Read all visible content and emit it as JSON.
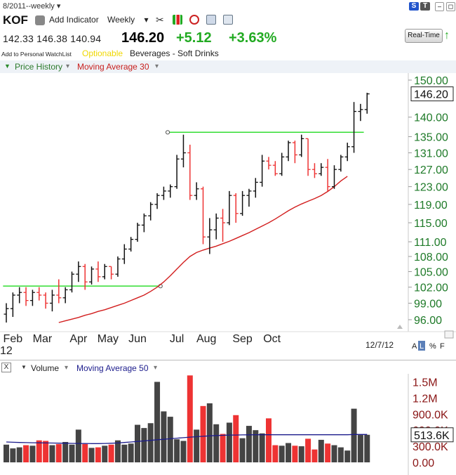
{
  "header": {
    "period": "8/2011--weekly",
    "symbol": "KOF",
    "add_indicator": "Add Indicator",
    "timeframe": "Weekly",
    "open": "142.33",
    "high": "146.38",
    "low": "140.94",
    "last": "146.20",
    "change": "+5.12",
    "change_pct": "+3.63%",
    "watchlist": "Add to Personal WatchList",
    "optionable": "Optionable",
    "industry": "Beverages - Soft Drinks",
    "realtime": "Real-Time",
    "s_badge": "S",
    "t_badge": "T"
  },
  "price_legend": {
    "main": "Price History",
    "indicator": "Moving Average 30"
  },
  "volume_legend": {
    "main": "Volume",
    "indicator": "Moving Average 50",
    "close_x": "X"
  },
  "date_stamp": "12/7/12",
  "year_stub": "12",
  "axis_modes": [
    "A",
    "L",
    "%",
    "F"
  ],
  "colors": {
    "up": "#111111",
    "down": "#ee3333",
    "ma30": "#d21e1e",
    "ma50": "#1c1c8c",
    "trend": "#33dd33",
    "axis_text": "#1e7a28"
  },
  "chart_data": [
    {
      "type": "ohlc",
      "title": "",
      "y_ticks": [
        150.0,
        140.0,
        135.0,
        131.0,
        127.0,
        123.0,
        119.0,
        115.0,
        111.0,
        108.0,
        105.0,
        102.0,
        99.0,
        96.0
      ],
      "y_tick_labels": [
        "150.00",
        "140.00",
        "135.00",
        "131.00",
        "127.00",
        "123.00",
        "119.00",
        "115.00",
        "111.00",
        "108.00",
        "105.00",
        "102.00",
        "99.00",
        "96.00"
      ],
      "ylim": [
        94,
        153
      ],
      "y_scale": "log",
      "x_labels": [
        {
          "label": "Feb",
          "i": 1
        },
        {
          "label": "Mar",
          "i": 5.5
        },
        {
          "label": "Apr",
          "i": 11
        },
        {
          "label": "May",
          "i": 15.5
        },
        {
          "label": "Jun",
          "i": 20
        },
        {
          "label": "Jul",
          "i": 26
        },
        {
          "label": "Aug",
          "i": 30.5
        },
        {
          "label": "Sep",
          "i": 36
        },
        {
          "label": "Oct",
          "i": 40.5
        }
      ],
      "last_price_label": "146.20",
      "series": [
        {
          "name": "Price History",
          "type": "ohlc",
          "bars": [
            {
              "o": 97.0,
              "h": 99.0,
              "l": 95.5,
              "c": 98.0
            },
            {
              "o": 98.0,
              "h": 101.0,
              "l": 96.5,
              "c": 100.5
            },
            {
              "o": 100.5,
              "h": 102.0,
              "l": 99.0,
              "c": 101.0
            },
            {
              "o": 101.0,
              "h": 102.0,
              "l": 98.5,
              "c": 99.5
            },
            {
              "o": 99.5,
              "h": 101.5,
              "l": 98.5,
              "c": 101.0
            },
            {
              "o": 101.0,
              "h": 102.0,
              "l": 99.5,
              "c": 100.5
            },
            {
              "o": 100.5,
              "h": 101.0,
              "l": 98.0,
              "c": 99.0
            },
            {
              "o": 99.0,
              "h": 101.5,
              "l": 97.5,
              "c": 100.5
            },
            {
              "o": 100.5,
              "h": 103.5,
              "l": 99.0,
              "c": 100.0
            },
            {
              "o": 100.0,
              "h": 102.0,
              "l": 99.0,
              "c": 101.5
            },
            {
              "o": 101.5,
              "h": 105.0,
              "l": 101.0,
              "c": 104.5
            },
            {
              "o": 104.5,
              "h": 107.0,
              "l": 103.0,
              "c": 106.0
            },
            {
              "o": 106.0,
              "h": 106.5,
              "l": 101.5,
              "c": 103.0
            },
            {
              "o": 103.0,
              "h": 106.0,
              "l": 102.5,
              "c": 105.5
            },
            {
              "o": 105.5,
              "h": 107.0,
              "l": 103.0,
              "c": 104.0
            },
            {
              "o": 104.0,
              "h": 106.5,
              "l": 103.5,
              "c": 106.0
            },
            {
              "o": 106.0,
              "h": 106.0,
              "l": 103.5,
              "c": 104.5
            },
            {
              "o": 104.5,
              "h": 108.0,
              "l": 104.0,
              "c": 107.5
            },
            {
              "o": 107.5,
              "h": 110.5,
              "l": 106.5,
              "c": 109.5
            },
            {
              "o": 109.5,
              "h": 112.0,
              "l": 109.0,
              "c": 111.5
            },
            {
              "o": 111.5,
              "h": 115.0,
              "l": 111.0,
              "c": 114.5
            },
            {
              "o": 114.5,
              "h": 117.0,
              "l": 113.0,
              "c": 116.5
            },
            {
              "o": 116.5,
              "h": 119.5,
              "l": 115.5,
              "c": 119.0
            },
            {
              "o": 119.0,
              "h": 121.5,
              "l": 118.0,
              "c": 121.0
            },
            {
              "o": 121.0,
              "h": 123.0,
              "l": 120.0,
              "c": 122.0
            },
            {
              "o": 122.0,
              "h": 123.5,
              "l": 120.5,
              "c": 123.0
            },
            {
              "o": 123.0,
              "h": 130.5,
              "l": 122.5,
              "c": 129.5
            },
            {
              "o": 129.5,
              "h": 135.5,
              "l": 127.5,
              "c": 131.0
            },
            {
              "o": 131.0,
              "h": 133.0,
              "l": 120.0,
              "c": 121.0
            },
            {
              "o": 121.0,
              "h": 124.0,
              "l": 120.0,
              "c": 122.5
            },
            {
              "o": 122.5,
              "h": 123.0,
              "l": 110.5,
              "c": 112.0
            },
            {
              "o": 112.0,
              "h": 116.0,
              "l": 108.5,
              "c": 113.5
            },
            {
              "o": 113.5,
              "h": 117.0,
              "l": 111.5,
              "c": 116.0
            },
            {
              "o": 116.0,
              "h": 118.0,
              "l": 111.0,
              "c": 115.0
            },
            {
              "o": 115.0,
              "h": 122.0,
              "l": 114.5,
              "c": 121.0
            },
            {
              "o": 121.0,
              "h": 121.5,
              "l": 115.0,
              "c": 117.0
            },
            {
              "o": 117.0,
              "h": 122.0,
              "l": 116.5,
              "c": 121.0
            },
            {
              "o": 121.0,
              "h": 122.5,
              "l": 118.5,
              "c": 122.0
            },
            {
              "o": 122.0,
              "h": 125.0,
              "l": 120.5,
              "c": 124.0
            },
            {
              "o": 124.0,
              "h": 130.5,
              "l": 123.0,
              "c": 129.0
            },
            {
              "o": 129.0,
              "h": 130.0,
              "l": 127.0,
              "c": 128.0
            },
            {
              "o": 128.0,
              "h": 129.0,
              "l": 125.5,
              "c": 126.0
            },
            {
              "o": 126.0,
              "h": 131.0,
              "l": 125.5,
              "c": 130.0
            },
            {
              "o": 130.0,
              "h": 134.0,
              "l": 129.0,
              "c": 133.5
            },
            {
              "o": 133.5,
              "h": 134.0,
              "l": 128.5,
              "c": 130.5
            },
            {
              "o": 130.5,
              "h": 135.5,
              "l": 130.0,
              "c": 134.5
            },
            {
              "o": 134.5,
              "h": 134.5,
              "l": 125.5,
              "c": 127.0
            },
            {
              "o": 127.0,
              "h": 128.5,
              "l": 125.0,
              "c": 126.0
            },
            {
              "o": 126.0,
              "h": 128.5,
              "l": 125.5,
              "c": 127.5
            },
            {
              "o": 127.5,
              "h": 129.5,
              "l": 122.0,
              "c": 123.0
            },
            {
              "o": 123.0,
              "h": 128.0,
              "l": 122.5,
              "c": 127.0
            },
            {
              "o": 127.0,
              "h": 130.5,
              "l": 126.5,
              "c": 130.0
            },
            {
              "o": 130.0,
              "h": 133.5,
              "l": 129.0,
              "c": 132.5
            },
            {
              "o": 132.5,
              "h": 144.0,
              "l": 131.0,
              "c": 141.5
            },
            {
              "o": 141.5,
              "h": 143.5,
              "l": 139.0,
              "c": 142.0
            },
            {
              "o": 142.0,
              "h": 146.5,
              "l": 140.9,
              "c": 146.2
            }
          ]
        },
        {
          "name": "Moving Average 30",
          "type": "line",
          "x_start": 8,
          "values": [
            95.5,
            95.8,
            96.1,
            96.4,
            96.8,
            97.1,
            97.5,
            97.8,
            98.2,
            98.6,
            99.0,
            99.5,
            100.0,
            100.5,
            101.2,
            102.0,
            103.0,
            104.2,
            105.5,
            106.8,
            108.0,
            108.8,
            109.3,
            109.7,
            110.1,
            110.6,
            111.1,
            111.7,
            112.3,
            112.9,
            113.6,
            114.3,
            115.0,
            115.8,
            116.7,
            117.6,
            118.4,
            119.1,
            119.7,
            120.3,
            121.0,
            121.9,
            123.0,
            124.3,
            125.4
          ]
        },
        {
          "name": "Trendline",
          "type": "segment",
          "points": [
            {
              "x": -0.5,
              "y": 102.2
            },
            {
              "x": 23.5,
              "y": 102.2
            }
          ]
        },
        {
          "name": "Trendline",
          "type": "segment",
          "points": [
            {
              "x": 24.6,
              "y": 136.1
            },
            {
              "x": 54.5,
              "y": 136.1
            }
          ]
        }
      ]
    },
    {
      "type": "bar",
      "title": "",
      "y_ticks": [
        1500000,
        1200000,
        900000,
        600000,
        300000,
        0
      ],
      "y_tick_labels": [
        "1.5M",
        "1.2M",
        "900.0K",
        "600.0K",
        "300.0K",
        "0.00"
      ],
      "ylim": [
        0,
        1650000
      ],
      "last_value_label": "513.6K",
      "series": [
        {
          "name": "Volume",
          "values": [
            330000,
            260000,
            280000,
            320000,
            310000,
            410000,
            400000,
            320000,
            340000,
            380000,
            330000,
            610000,
            340000,
            270000,
            280000,
            310000,
            330000,
            410000,
            330000,
            350000,
            700000,
            640000,
            730000,
            1500000,
            950000,
            850000,
            430000,
            400000,
            1620000,
            610000,
            1050000,
            1100000,
            710000,
            530000,
            740000,
            880000,
            450000,
            680000,
            600000,
            540000,
            820000,
            320000,
            310000,
            360000,
            310000,
            300000,
            440000,
            240000,
            420000,
            350000,
            320000,
            280000,
            220000,
            1000000,
            510000,
            513600
          ],
          "colors": "mixed"
        },
        {
          "name": "Moving Average 50",
          "type": "line",
          "values": [
            380000,
            375000,
            370000,
            368000,
            366000,
            364000,
            362000,
            360000,
            358000,
            356000,
            354000,
            352000,
            351000,
            350000,
            350000,
            352000,
            356000,
            362000,
            370000,
            380000,
            390000,
            400000,
            410000,
            420000,
            430000,
            440000,
            450000,
            460000,
            470000,
            478000,
            486000,
            494000,
            500000,
            504000,
            508000,
            510000,
            512000,
            513000,
            514000,
            514000,
            514000,
            514000,
            514000,
            514000,
            514000,
            514000,
            514000,
            514000,
            514000,
            514000,
            514000,
            514000,
            514000,
            520000,
            520000,
            520000
          ]
        }
      ]
    }
  ]
}
